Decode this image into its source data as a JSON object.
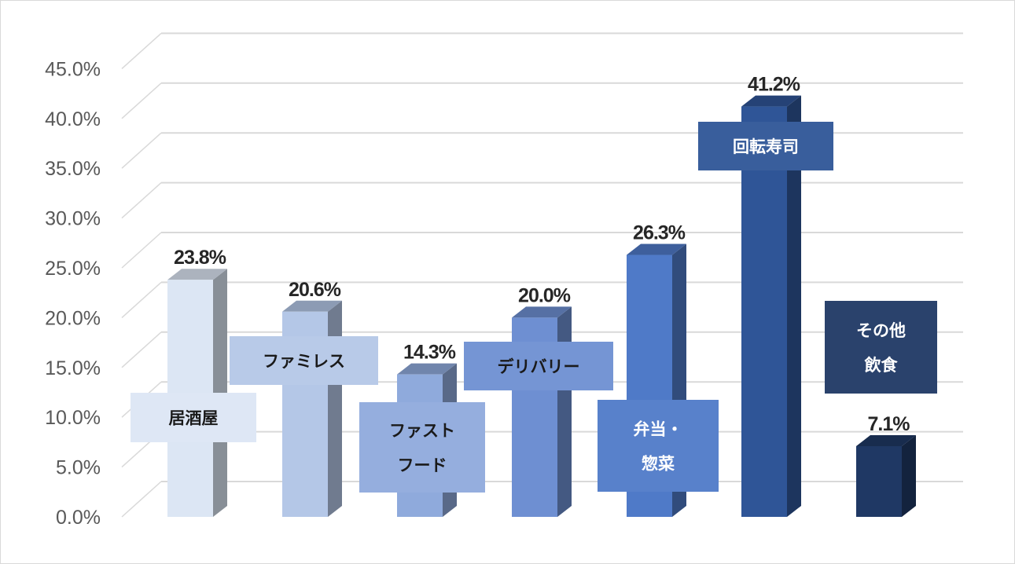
{
  "chart_data": {
    "type": "bar",
    "style": "3d-column",
    "title": "",
    "xlabel": "",
    "ylabel": "",
    "ylim": [
      0,
      45
    ],
    "y_ticks": [
      "0.0%",
      "5.0%",
      "10.0%",
      "15.0%",
      "20.0%",
      "25.0%",
      "30.0%",
      "35.0%",
      "40.0%",
      "45.0%"
    ],
    "grid": true,
    "legend": "none",
    "categories": [
      {
        "label_lines": [
          "居酒屋"
        ],
        "value": 23.8,
        "value_label": "23.8%",
        "color": "#dce6f4",
        "label_color": "#1a1a1a"
      },
      {
        "label_lines": [
          "ファミレス"
        ],
        "value": 20.6,
        "value_label": "20.6%",
        "color": "#b4c7e7",
        "label_color": "#1a1a1a"
      },
      {
        "label_lines": [
          "ファスト",
          "フード"
        ],
        "value": 14.3,
        "value_label": "14.3%",
        "color": "#8faadc",
        "label_color": "#1a1a1a"
      },
      {
        "label_lines": [
          "デリバリー"
        ],
        "value": 20.0,
        "value_label": "20.0%",
        "color": "#6e8fd2",
        "label_color": "#1a1a1a"
      },
      {
        "label_lines": [
          "弁当・",
          "惣菜"
        ],
        "value": 26.3,
        "value_label": "26.3%",
        "color": "#4f7ac8",
        "label_color": "#ffffff"
      },
      {
        "label_lines": [
          "回転寿司"
        ],
        "value": 41.2,
        "value_label": "41.2%",
        "color": "#2f5597",
        "label_color": "#ffffff"
      },
      {
        "label_lines": [
          "その他",
          "飲食"
        ],
        "value": 7.1,
        "value_label": "7.1%",
        "color": "#1f3864",
        "label_color": "#ffffff"
      }
    ]
  }
}
